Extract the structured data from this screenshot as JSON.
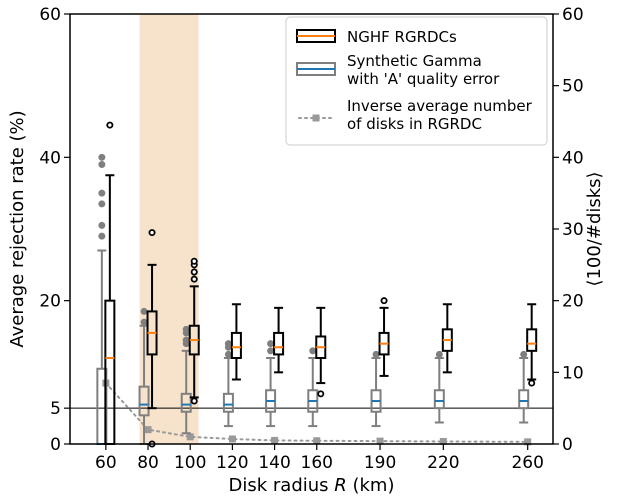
{
  "chart_data": {
    "type": "box",
    "title": "",
    "xlabel": "Disk radius R (km)",
    "ylabel": "Average rejection rate (%)",
    "y2label": "⟨100/#disks⟩",
    "categories": [
      "60",
      "80",
      "100",
      "120",
      "140",
      "160",
      "190",
      "220",
      "260"
    ],
    "x": [
      60,
      80,
      100,
      120,
      140,
      160,
      190,
      220,
      260
    ],
    "xlim": [
      43,
      272
    ],
    "ylim": [
      0,
      60
    ],
    "yticks": [
      0,
      5,
      20,
      40,
      60
    ],
    "y2lim": [
      0,
      60
    ],
    "y2ticks": [
      0,
      10,
      20,
      30,
      40,
      50,
      60
    ],
    "reference_line": 5,
    "highlight_band": [
      76,
      104
    ],
    "legend_position": "top-right",
    "colors": {
      "ngfh_box": "#000000",
      "ngfh_median": "#ff7f0e",
      "synth_box": "#7f7f7f",
      "synth_median": "#1f77b4",
      "inverse_line": "#999999",
      "band": "#f7e3cc"
    },
    "series": [
      {
        "name": "NGHF RGRDCs",
        "boxes": [
          {
            "x": 60,
            "whislo": 0,
            "q1": 0,
            "med": 12,
            "q3": 20,
            "whishi": 37.5,
            "fliers": [
              44.5
            ]
          },
          {
            "x": 80,
            "whislo": 5,
            "q1": 12.5,
            "med": 15.5,
            "q3": 18.5,
            "whishi": 25,
            "fliers": [
              29.5,
              0
            ]
          },
          {
            "x": 100,
            "whislo": 6.5,
            "q1": 12.5,
            "med": 14.5,
            "q3": 16.5,
            "whishi": 22,
            "fliers": [
              23,
              24,
              25,
              25.5,
              6
            ]
          },
          {
            "x": 120,
            "whislo": 9,
            "q1": 12,
            "med": 13.5,
            "q3": 15.5,
            "whishi": 19.5,
            "fliers": []
          },
          {
            "x": 140,
            "whislo": 10,
            "q1": 12.5,
            "med": 13.5,
            "q3": 15.5,
            "whishi": 19,
            "fliers": []
          },
          {
            "x": 160,
            "whislo": 8.5,
            "q1": 12,
            "med": 13.5,
            "q3": 15,
            "whishi": 19,
            "fliers": [
              7
            ]
          },
          {
            "x": 190,
            "whislo": 9.5,
            "q1": 12.5,
            "med": 14,
            "q3": 15.5,
            "whishi": 19,
            "fliers": [
              20
            ]
          },
          {
            "x": 220,
            "whislo": 10,
            "q1": 13,
            "med": 14.5,
            "q3": 16,
            "whishi": 19.5,
            "fliers": []
          },
          {
            "x": 260,
            "whislo": 9,
            "q1": 13,
            "med": 14,
            "q3": 16,
            "whishi": 19.5,
            "fliers": [
              8.5
            ]
          }
        ]
      },
      {
        "name": "Synthetic Gamma\nwith 'A' quality error",
        "boxes": [
          {
            "x": 60,
            "whislo": 0,
            "q1": 0,
            "med": 0,
            "q3": 10.5,
            "whishi": 27,
            "fliers": [
              29,
              30.5,
              33.5,
              35,
              39,
              40
            ]
          },
          {
            "x": 80,
            "whislo": 0,
            "q1": 4,
            "med": 5.5,
            "q3": 8,
            "whishi": 16.5,
            "fliers": [
              17,
              18.5
            ]
          },
          {
            "x": 100,
            "whislo": 1.5,
            "q1": 4.5,
            "med": 5.5,
            "q3": 7,
            "whishi": 13,
            "fliers": [
              14,
              14.5,
              15.5,
              16
            ]
          },
          {
            "x": 120,
            "whislo": 2.5,
            "q1": 4.5,
            "med": 5.5,
            "q3": 7,
            "whishi": 12,
            "fliers": [
              12.5,
              13.5,
              14
            ]
          },
          {
            "x": 140,
            "whislo": 2.5,
            "q1": 4.5,
            "med": 6,
            "q3": 7.5,
            "whishi": 12,
            "fliers": [
              13,
              14
            ]
          },
          {
            "x": 160,
            "whislo": 2.5,
            "q1": 4.5,
            "med": 6,
            "q3": 7.5,
            "whishi": 12,
            "fliers": [
              13
            ]
          },
          {
            "x": 190,
            "whislo": 2.5,
            "q1": 4.5,
            "med": 6,
            "q3": 7.5,
            "whishi": 12,
            "fliers": [
              12.5
            ]
          },
          {
            "x": 220,
            "whislo": 3,
            "q1": 5,
            "med": 6,
            "q3": 7.5,
            "whishi": 12,
            "fliers": [
              12.5
            ]
          },
          {
            "x": 260,
            "whislo": 3,
            "q1": 5,
            "med": 6,
            "q3": 7.5,
            "whishi": 12,
            "fliers": [
              12.5
            ]
          }
        ]
      },
      {
        "name": "Inverse average number\nof disks in RGRDC",
        "axis": "right",
        "x": [
          60,
          80,
          100,
          120,
          140,
          160,
          190,
          220,
          260
        ],
        "y": [
          8.5,
          2,
          1,
          0.7,
          0.5,
          0.45,
          0.4,
          0.35,
          0.3
        ]
      }
    ]
  }
}
